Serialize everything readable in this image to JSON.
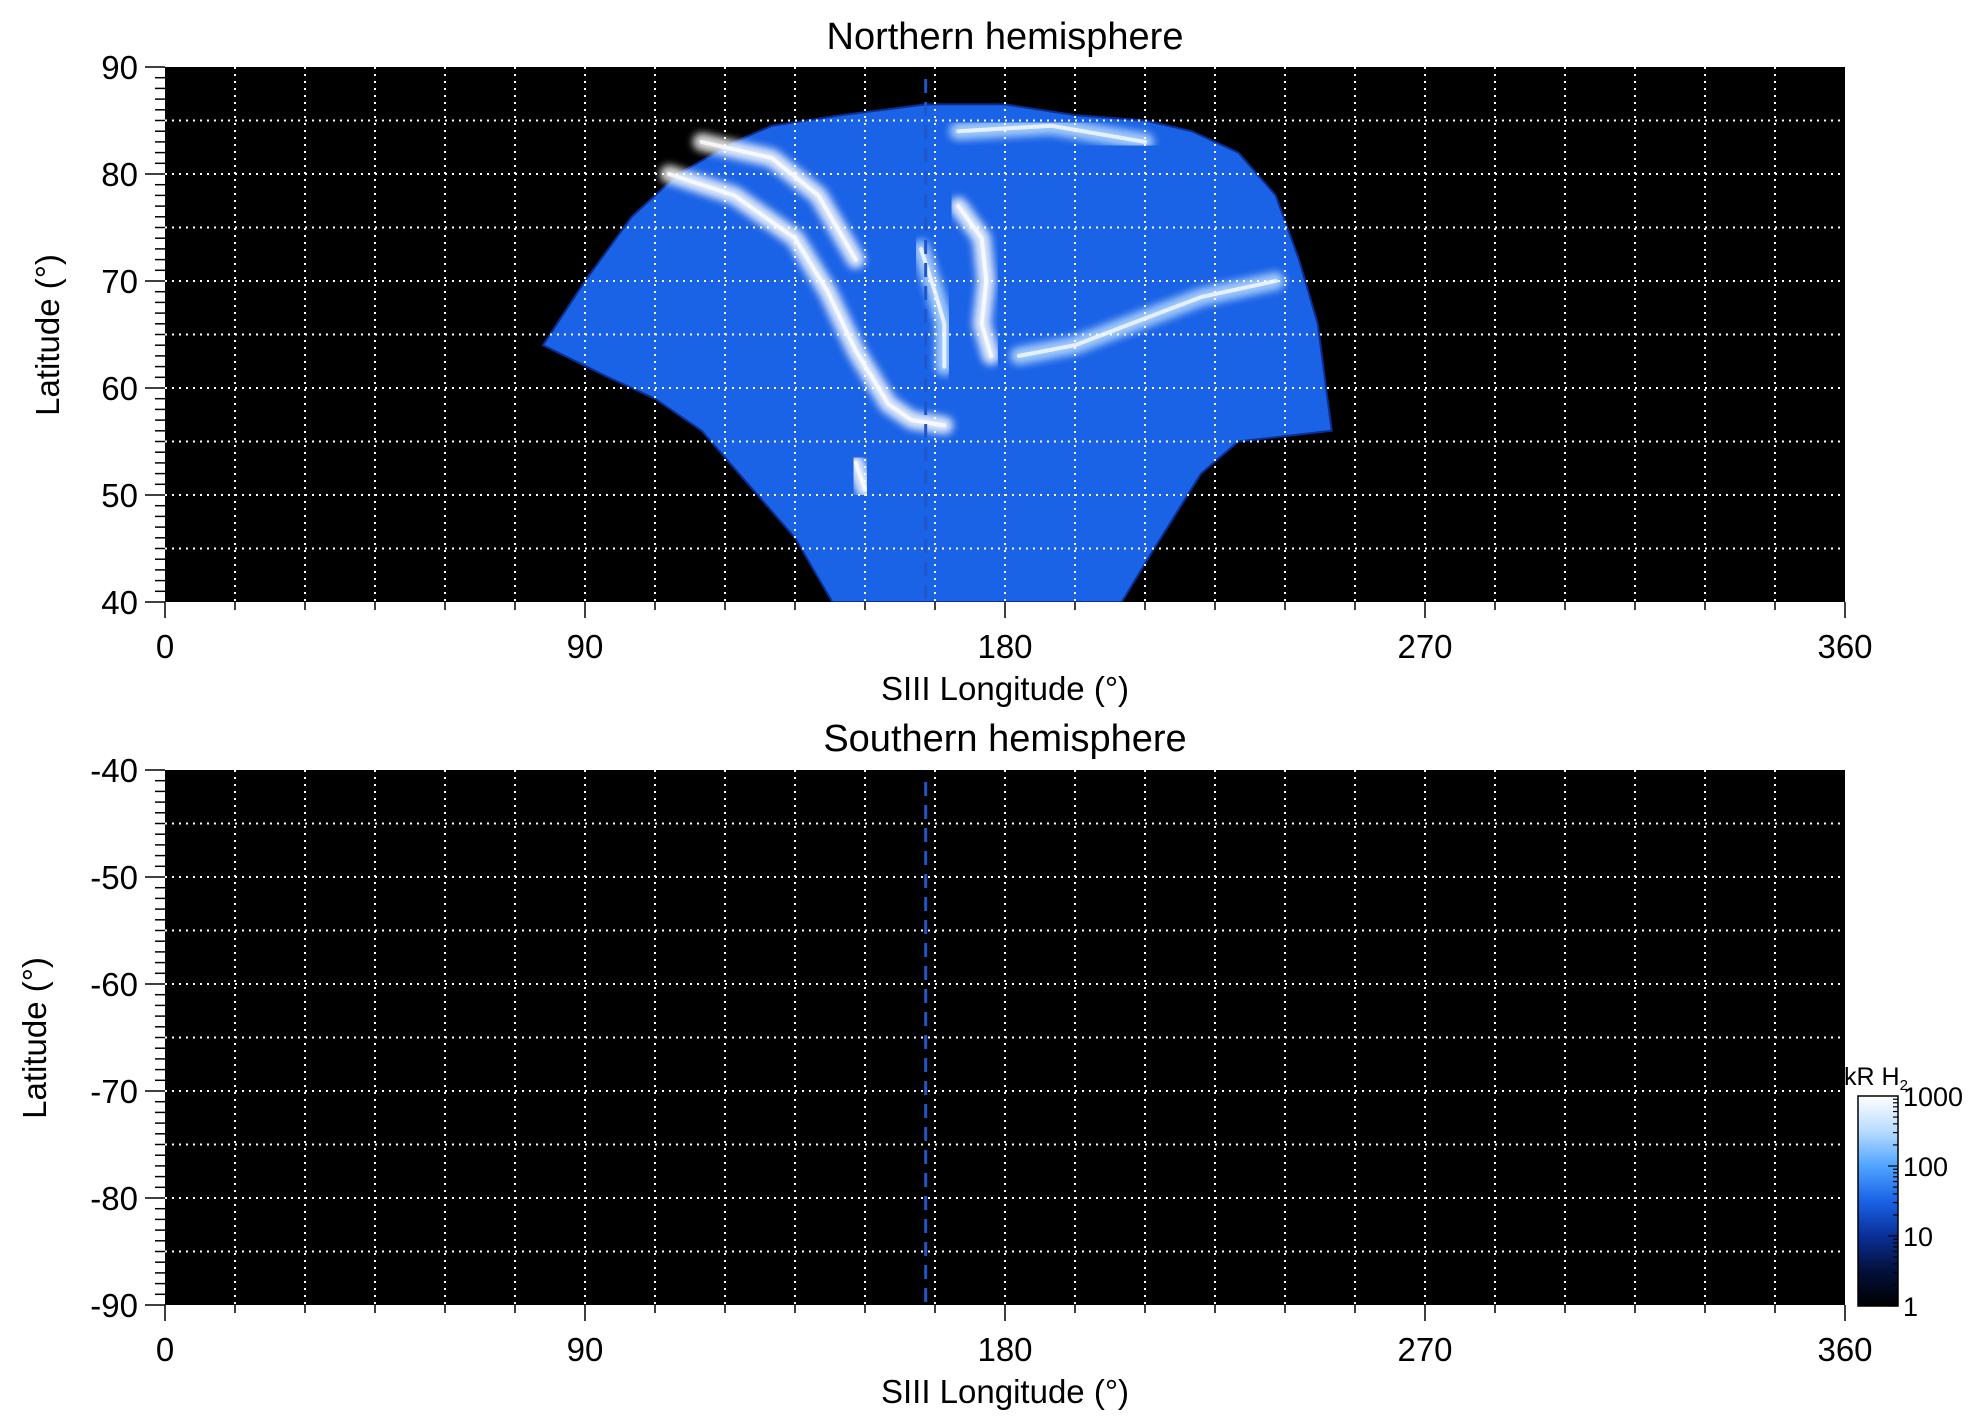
{
  "chart_data": [
    {
      "type": "heatmap",
      "title": "Northern hemisphere",
      "xlabel": "SIII Longitude (°)",
      "ylabel": "Latitude (°)",
      "xlim": [
        0,
        360
      ],
      "ylim": [
        40,
        90
      ],
      "xticks": [
        "0",
        "90",
        "180",
        "270",
        "360"
      ],
      "yticks": [
        "40",
        "50",
        "60",
        "70",
        "80",
        "90"
      ],
      "grid": true,
      "reference_longitude": 163,
      "region": {
        "upper_edge": [
          [
            81,
            64
          ],
          [
            90,
            70
          ],
          [
            100,
            76
          ],
          [
            110,
            80
          ],
          [
            122,
            83
          ],
          [
            130,
            84.5
          ],
          [
            145,
            85.5
          ],
          [
            163,
            86.5
          ],
          [
            180,
            86.5
          ],
          [
            195,
            85.5
          ],
          [
            210,
            85
          ],
          [
            220,
            84
          ],
          [
            230,
            82
          ],
          [
            238,
            78
          ],
          [
            243,
            72
          ],
          [
            247,
            66
          ],
          [
            250,
            56
          ]
        ],
        "lower_edge": [
          [
            81,
            64
          ],
          [
            95,
            61
          ],
          [
            105,
            59
          ],
          [
            115,
            56
          ],
          [
            125,
            51
          ],
          [
            135,
            46
          ],
          [
            143,
            40
          ],
          [
            205,
            40
          ],
          [
            212,
            45
          ],
          [
            222,
            52
          ],
          [
            230,
            55
          ],
          [
            240,
            55.5
          ],
          [
            250,
            56
          ]
        ]
      },
      "bright_features": [
        {
          "path": [
            [
              108,
              80
            ],
            [
              122,
              78
            ],
            [
              135,
              74
            ],
            [
              142,
              69
            ],
            [
              148,
              63.5
            ],
            [
              155,
              58.5
            ],
            [
              160,
              57
            ],
            [
              167,
              56.5
            ]
          ],
          "intensity": 1000
        },
        {
          "path": [
            [
              115,
              83
            ],
            [
              130,
              81.5
            ],
            [
              140,
              78
            ],
            [
              148,
              72
            ]
          ],
          "intensity": 600
        },
        {
          "path": [
            [
              170,
              77
            ],
            [
              175,
              74
            ],
            [
              176,
              70
            ],
            [
              175,
              66
            ],
            [
              177,
              63
            ]
          ],
          "intensity": 800
        },
        {
          "path": [
            [
              162,
              73
            ],
            [
              165,
              69
            ],
            [
              167,
              66
            ],
            [
              167,
              62
            ]
          ],
          "intensity": 500
        },
        {
          "path": [
            [
              183,
              63
            ],
            [
              195,
              64
            ],
            [
              207,
              66
            ],
            [
              222,
              68.5
            ],
            [
              238,
              70
            ]
          ],
          "intensity": 500
        },
        {
          "path": [
            [
              148,
              53
            ],
            [
              150,
              50.5
            ]
          ],
          "intensity": 800
        },
        {
          "path": [
            [
              170,
              84
            ],
            [
              190,
              84.5
            ],
            [
              210,
              83
            ]
          ],
          "intensity": 450
        }
      ]
    },
    {
      "type": "heatmap",
      "title": "Southern hemisphere",
      "xlabel": "SIII Longitude (°)",
      "ylabel": "Latitude (°)",
      "xlim": [
        0,
        360
      ],
      "ylim": [
        -90,
        -40
      ],
      "xticks": [
        "0",
        "90",
        "180",
        "270",
        "360"
      ],
      "yticks": [
        "-40",
        "-50",
        "-60",
        "-70",
        "-80",
        "-90"
      ],
      "grid": true,
      "reference_longitude": 163,
      "region": null
    }
  ],
  "colorbar": {
    "label_main": "kR H",
    "label_sub": "2",
    "scale": "log",
    "range": [
      1,
      1000
    ],
    "ticks": [
      "1",
      "10",
      "100",
      "1000"
    ],
    "colors": [
      "#000000",
      "#03103a",
      "#0a2f96",
      "#1a62e6",
      "#50a4ff",
      "#b8dcff",
      "#ffffff"
    ]
  }
}
